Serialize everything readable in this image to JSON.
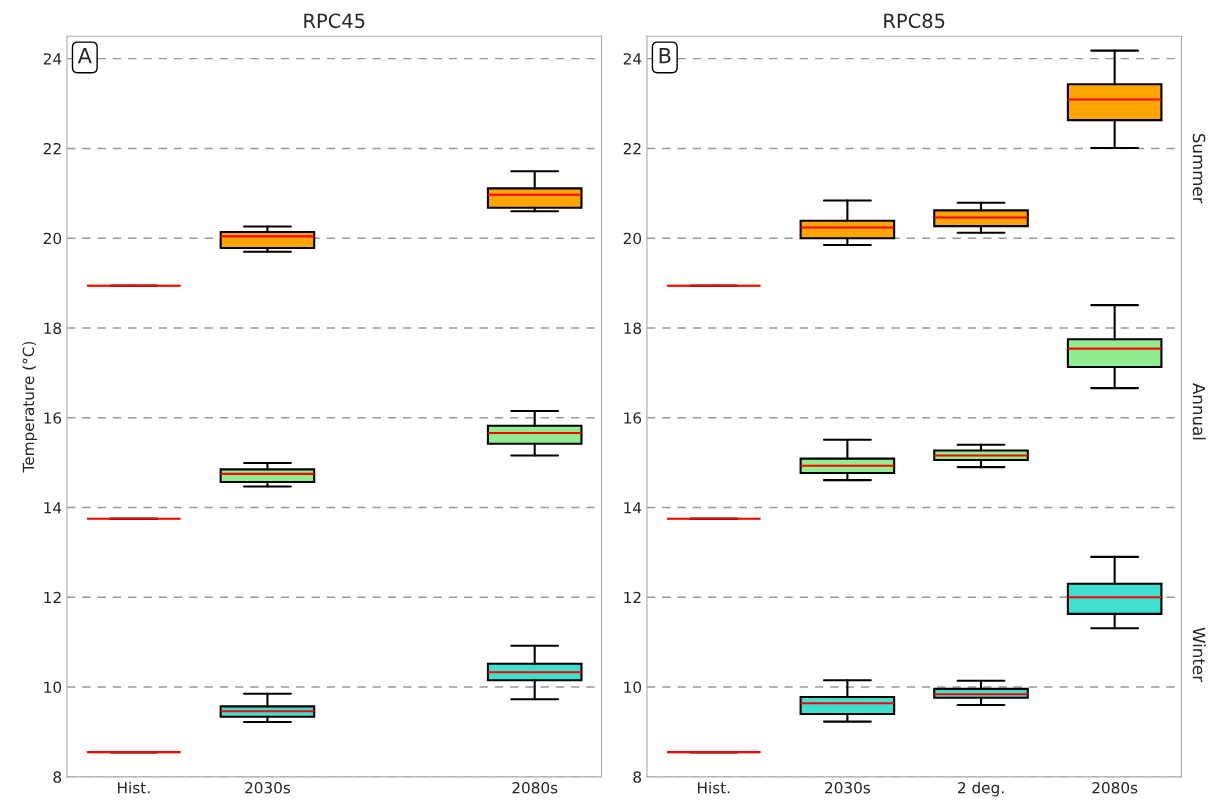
{
  "chart_data": [
    {
      "type": "box",
      "title": "RPC45",
      "ylabel": "Temperature (°C)",
      "categories": [
        "Hist.",
        "2030s",
        null,
        "2080s"
      ],
      "ylim": [
        8,
        24.5
      ],
      "yticks": [
        8,
        10,
        12,
        14,
        16,
        18,
        20,
        22,
        24
      ],
      "grid": "y",
      "annotations": [
        "A"
      ],
      "series": [
        {
          "color": "#ffa500",
          "boxes": [
            {
              "low": 18.94,
              "q1": 18.94,
              "median": 18.94,
              "q3": 18.94,
              "high": 18.94
            },
            {
              "low": 19.7,
              "q1": 19.78,
              "median": 20.04,
              "q3": 20.14,
              "high": 20.26
            },
            null,
            {
              "low": 20.6,
              "q1": 20.68,
              "median": 20.97,
              "q3": 21.11,
              "high": 21.49
            }
          ]
        },
        {
          "color": "#90ee90",
          "boxes": [
            {
              "low": 13.75,
              "q1": 13.75,
              "median": 13.75,
              "q3": 13.75,
              "high": 13.75
            },
            {
              "low": 14.47,
              "q1": 14.57,
              "median": 14.75,
              "q3": 14.85,
              "high": 14.99
            },
            null,
            {
              "low": 15.16,
              "q1": 15.42,
              "median": 15.66,
              "q3": 15.82,
              "high": 16.15
            }
          ]
        },
        {
          "color": "#40e0d0",
          "boxes": [
            {
              "low": 8.55,
              "q1": 8.55,
              "median": 8.55,
              "q3": 8.55,
              "high": 8.55
            },
            {
              "low": 9.22,
              "q1": 9.34,
              "median": 9.46,
              "q3": 9.57,
              "high": 9.85
            },
            null,
            {
              "low": 9.73,
              "q1": 10.15,
              "median": 10.33,
              "q3": 10.52,
              "high": 10.92
            }
          ]
        }
      ]
    },
    {
      "type": "box",
      "title": "RPC85",
      "categories": [
        "Hist.",
        "2030s",
        "2 deg.",
        "2080s"
      ],
      "ylim": [
        8,
        24.5
      ],
      "yticks": [
        8,
        10,
        12,
        14,
        16,
        18,
        20,
        22,
        24
      ],
      "grid": "y",
      "annotations": [
        "B"
      ],
      "series": [
        {
          "name": "Summer",
          "color": "#ffa500",
          "boxes": [
            {
              "low": 18.94,
              "q1": 18.94,
              "median": 18.94,
              "q3": 18.94,
              "high": 18.94
            },
            {
              "low": 19.85,
              "q1": 20.0,
              "median": 20.24,
              "q3": 20.39,
              "high": 20.84
            },
            {
              "low": 20.12,
              "q1": 20.27,
              "median": 20.46,
              "q3": 20.62,
              "high": 20.79
            },
            {
              "low": 22.01,
              "q1": 22.63,
              "median": 23.09,
              "q3": 23.43,
              "high": 24.18
            }
          ]
        },
        {
          "name": "Annual",
          "color": "#90ee90",
          "boxes": [
            {
              "low": 13.75,
              "q1": 13.75,
              "median": 13.75,
              "q3": 13.75,
              "high": 13.75
            },
            {
              "low": 14.61,
              "q1": 14.77,
              "median": 14.93,
              "q3": 15.09,
              "high": 15.51
            },
            {
              "low": 14.9,
              "q1": 15.06,
              "median": 15.16,
              "q3": 15.27,
              "high": 15.4
            },
            {
              "low": 16.66,
              "q1": 17.13,
              "median": 17.54,
              "q3": 17.75,
              "high": 18.51
            }
          ]
        },
        {
          "name": "Winter",
          "color": "#40e0d0",
          "boxes": [
            {
              "low": 8.55,
              "q1": 8.55,
              "median": 8.55,
              "q3": 8.55,
              "high": 8.55
            },
            {
              "low": 9.23,
              "q1": 9.4,
              "median": 9.64,
              "q3": 9.78,
              "high": 10.15
            },
            {
              "low": 9.6,
              "q1": 9.76,
              "median": 9.84,
              "q3": 9.96,
              "high": 10.14
            },
            {
              "low": 11.31,
              "q1": 11.63,
              "median": 12.0,
              "q3": 12.3,
              "high": 12.9
            }
          ]
        }
      ]
    }
  ]
}
